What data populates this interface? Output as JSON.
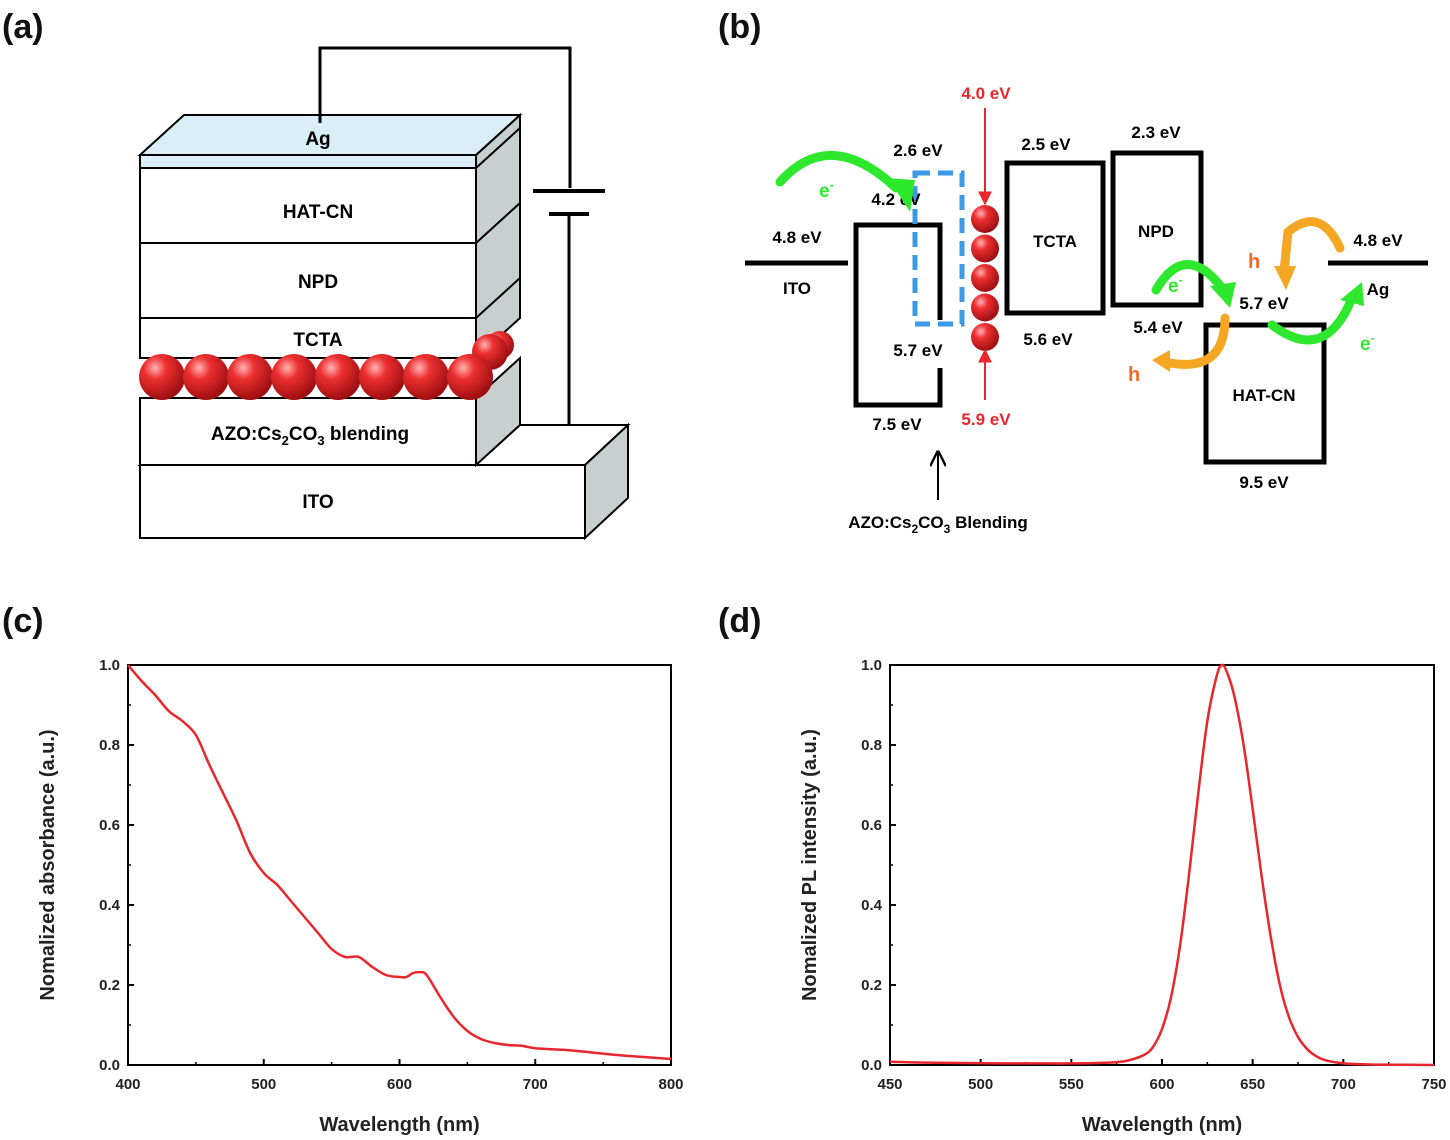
{
  "panels": {
    "a": "(a)",
    "b": "(b)",
    "c": "(c)",
    "d": "(d)"
  },
  "device": {
    "layers": {
      "ag": "Ag",
      "hatcn": "HAT-CN",
      "npd": "NPD",
      "tcta": "TCTA",
      "azo_prefix": "AZO:Cs",
      "azo_sub1": "2",
      "azo_mid": "CO",
      "azo_sub2": "3",
      "azo_suffix": " blending",
      "ito": "ITO"
    },
    "colors": {
      "ag_layer": "#d9eef6",
      "side": "#c8cfcf",
      "qd": "#e8262c"
    }
  },
  "energy": {
    "ito": {
      "label": "ITO",
      "level": "4.8 eV"
    },
    "azo": {
      "lumo_top": "2.6 eV",
      "lumo": "4.2 eV",
      "homo_top": "5.7 eV",
      "homo": "7.5 eV"
    },
    "qd": {
      "lumo": "4.0 eV",
      "homo": "5.9 eV"
    },
    "tcta": {
      "label": "TCTA",
      "lumo": "2.5 eV",
      "homo": "5.6 eV"
    },
    "npd": {
      "label": "NPD",
      "lumo": "2.3 eV",
      "homo": "5.4 eV"
    },
    "hatcn": {
      "label": "HAT-CN",
      "lumo": "5.7 eV",
      "homo": "9.5 eV"
    },
    "ag": {
      "label": "Ag",
      "level": "4.8 eV"
    },
    "carriers": {
      "electron": "e",
      "hole": "h",
      "minus": "-"
    },
    "blending_label_prefix": "AZO:Cs",
    "blending_sub1": "2",
    "blending_mid": "CO",
    "blending_sub2": "3",
    "blending_suffix": " Blending",
    "colors": {
      "electron": "#2ee82e",
      "hole": "#f5a623",
      "qd_level": "#e8262c",
      "dashed": "#3a9ae8",
      "hole_text": "#f06a2a"
    }
  },
  "chart_data": [
    {
      "type": "line",
      "xlabel": "Wavelength (nm)",
      "ylabel": "Nomalized absorbance (a.u.)",
      "xlim": [
        400,
        800
      ],
      "ylim": [
        0.0,
        1.0
      ],
      "xticks": [
        "400",
        "500",
        "600",
        "700",
        "800"
      ],
      "yticks": [
        "0.0",
        "0.2",
        "0.4",
        "0.6",
        "0.8",
        "1.0"
      ],
      "color": "#e8262c",
      "x": [
        400,
        410,
        420,
        430,
        440,
        450,
        460,
        470,
        480,
        490,
        500,
        510,
        520,
        530,
        540,
        550,
        560,
        570,
        580,
        590,
        600,
        605,
        610,
        615,
        620,
        630,
        640,
        650,
        660,
        670,
        680,
        690,
        700,
        720,
        740,
        760,
        780,
        800
      ],
      "y": [
        1.0,
        0.96,
        0.925,
        0.885,
        0.86,
        0.825,
        0.75,
        0.68,
        0.61,
        0.53,
        0.48,
        0.45,
        0.41,
        0.37,
        0.33,
        0.29,
        0.27,
        0.27,
        0.245,
        0.225,
        0.22,
        0.22,
        0.23,
        0.232,
        0.225,
        0.17,
        0.12,
        0.085,
        0.065,
        0.055,
        0.05,
        0.048,
        0.042,
        0.038,
        0.032,
        0.025,
        0.02,
        0.015
      ]
    },
    {
      "type": "line",
      "xlabel": "Wavelength (nm)",
      "ylabel": "Nomalized PL intensity (a.u.)",
      "xlim": [
        450,
        750
      ],
      "ylim": [
        0.0,
        1.0
      ],
      "xticks": [
        "450",
        "500",
        "550",
        "600",
        "650",
        "700",
        "750"
      ],
      "yticks": [
        "0.0",
        "0.2",
        "0.4",
        "0.6",
        "0.8",
        "1.0"
      ],
      "color": "#e8262c",
      "x": [
        450,
        470,
        490,
        510,
        530,
        550,
        570,
        580,
        590,
        595,
        600,
        605,
        610,
        615,
        620,
        625,
        630,
        633,
        636,
        640,
        645,
        650,
        655,
        660,
        665,
        670,
        675,
        680,
        685,
        690,
        700,
        710,
        720,
        735,
        750
      ],
      "y": [
        0.008,
        0.006,
        0.005,
        0.004,
        0.004,
        0.004,
        0.006,
        0.01,
        0.025,
        0.045,
        0.09,
        0.17,
        0.3,
        0.48,
        0.68,
        0.86,
        0.97,
        1.0,
        0.98,
        0.92,
        0.8,
        0.64,
        0.47,
        0.32,
        0.2,
        0.12,
        0.07,
        0.04,
        0.022,
        0.012,
        0.004,
        0.002,
        0.001,
        0.0005,
        0.0
      ]
    }
  ]
}
